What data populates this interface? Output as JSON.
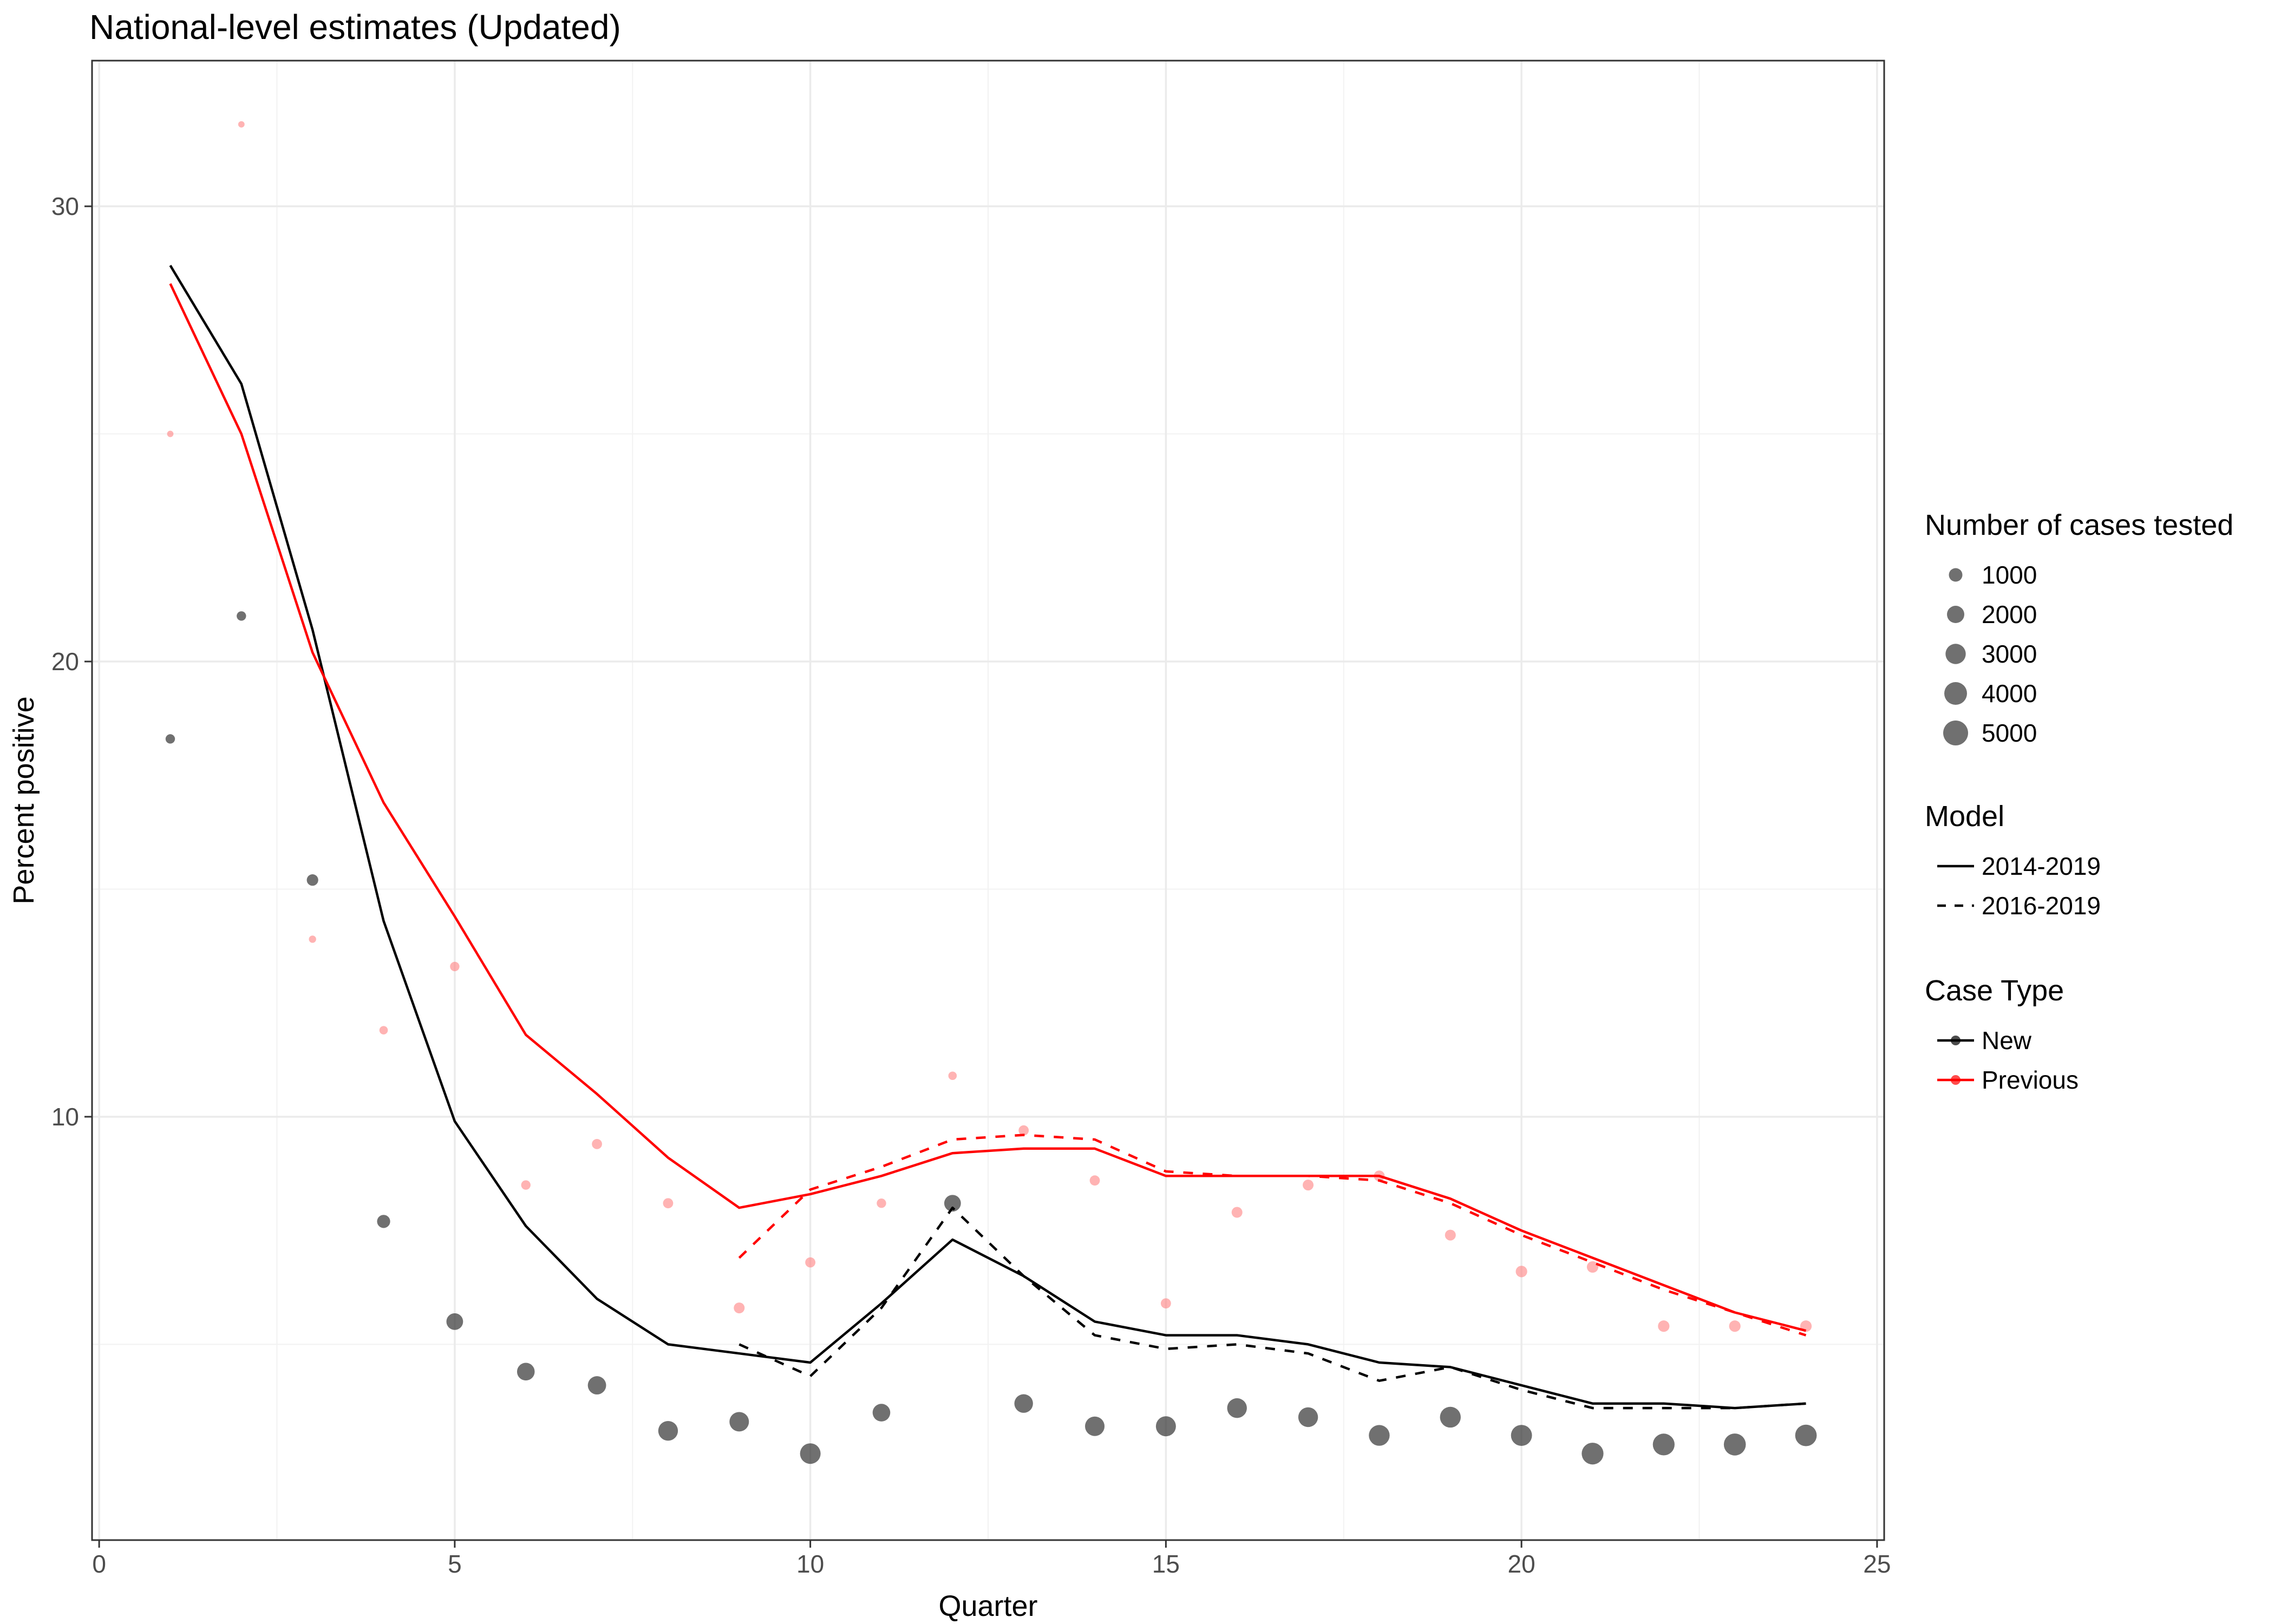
{
  "chart_data": {
    "type": "scatter",
    "title": "National-level estimates (Updated)",
    "xlabel": "Quarter",
    "ylabel": "Percent positive",
    "xlim": [
      -0.1,
      25.1
    ],
    "ylim": [
      0.7,
      33.2
    ],
    "x_ticks": [
      0,
      5,
      10,
      15,
      20,
      25
    ],
    "x_tick_labels": [
      "0",
      "5",
      "10",
      "15",
      "20",
      "25"
    ],
    "y_ticks": [
      10,
      20,
      30
    ],
    "y_tick_labels": [
      "10",
      "20",
      "30"
    ],
    "grid": true,
    "legend_position": "right",
    "colors": {
      "New": "#000000",
      "Previous": "#ff0000"
    },
    "points": {
      "New": {
        "x": [
          1,
          2,
          3,
          4,
          5,
          6,
          7,
          8,
          9,
          10,
          11,
          12,
          13,
          14,
          15,
          16,
          17,
          18,
          19,
          20,
          21,
          22,
          23,
          24
        ],
        "y": [
          18.3,
          21.0,
          15.2,
          7.7,
          5.5,
          4.4,
          4.1,
          3.1,
          3.3,
          2.6,
          3.5,
          8.1,
          3.7,
          3.2,
          3.2,
          3.6,
          3.4,
          3.0,
          3.4,
          3.0,
          2.6,
          2.8,
          2.8,
          3.0
        ],
        "cases": [
          300,
          300,
          600,
          900,
          1800,
          2100,
          2300,
          2800,
          2700,
          3100,
          2100,
          1800,
          2400,
          2700,
          2900,
          2800,
          2800,
          3200,
          3200,
          3300,
          3600,
          3600,
          3700,
          3500
        ]
      },
      "Previous": {
        "x": [
          1,
          2,
          3,
          4,
          5,
          6,
          7,
          8,
          9,
          10,
          11,
          12,
          13,
          14,
          15,
          16,
          17,
          18,
          19,
          20,
          21,
          22,
          23,
          24
        ],
        "y": [
          25.0,
          31.8,
          13.9,
          11.9,
          13.3,
          8.5,
          9.4,
          8.1,
          5.8,
          6.8,
          8.1,
          10.9,
          9.7,
          8.6,
          5.9,
          7.9,
          8.5,
          8.7,
          7.4,
          6.6,
          6.7,
          5.4,
          5.4,
          5.4
        ],
        "cases": [
          50,
          50,
          100,
          200,
          300,
          300,
          400,
          400,
          500,
          400,
          300,
          200,
          400,
          400,
          400,
          500,
          500,
          500,
          500,
          600,
          600,
          600,
          600,
          600
        ]
      }
    },
    "series": [
      {
        "name": "2014-2019 / New",
        "model": "2014-2019",
        "case_type": "New",
        "linetype": "solid",
        "x": [
          1,
          2,
          3,
          4,
          5,
          6,
          7,
          8,
          9,
          10,
          11,
          12,
          13,
          14,
          15,
          16,
          17,
          18,
          19,
          20,
          21,
          22,
          23,
          24
        ],
        "values": [
          28.7,
          26.1,
          20.7,
          14.3,
          9.9,
          7.6,
          6.0,
          5.0,
          4.8,
          4.6,
          5.9,
          7.3,
          6.5,
          5.5,
          5.2,
          5.2,
          5.0,
          4.6,
          4.5,
          4.1,
          3.7,
          3.7,
          3.6,
          3.7
        ]
      },
      {
        "name": "2014-2019 / Previous",
        "model": "2014-2019",
        "case_type": "Previous",
        "linetype": "solid",
        "x": [
          1,
          2,
          3,
          4,
          5,
          6,
          7,
          8,
          9,
          10,
          11,
          12,
          13,
          14,
          15,
          16,
          17,
          18,
          19,
          20,
          21,
          22,
          23,
          24
        ],
        "values": [
          28.3,
          25.0,
          20.2,
          16.9,
          14.4,
          11.8,
          10.5,
          9.1,
          8.0,
          8.3,
          8.7,
          9.2,
          9.3,
          9.3,
          8.7,
          8.7,
          8.7,
          8.7,
          8.2,
          7.5,
          6.9,
          6.3,
          5.7,
          5.3
        ]
      },
      {
        "name": "2016-2019 / New",
        "model": "2016-2019",
        "case_type": "New",
        "linetype": "dashed",
        "x": [
          9,
          10,
          11,
          12,
          13,
          14,
          15,
          16,
          17,
          18,
          19,
          20,
          21,
          22,
          23,
          24
        ],
        "values": [
          5.0,
          4.3,
          5.8,
          8.0,
          6.5,
          5.2,
          4.9,
          5.0,
          4.8,
          4.2,
          4.5,
          4.0,
          3.6,
          3.6,
          3.6,
          3.7
        ]
      },
      {
        "name": "2016-2019 / Previous",
        "model": "2016-2019",
        "case_type": "Previous",
        "linetype": "dashed",
        "x": [
          9,
          10,
          11,
          12,
          13,
          14,
          15,
          16,
          17,
          18,
          19,
          20,
          21,
          22,
          23,
          24
        ],
        "values": [
          6.9,
          8.4,
          8.9,
          9.5,
          9.6,
          9.5,
          8.8,
          8.7,
          8.7,
          8.6,
          8.1,
          7.4,
          6.8,
          6.2,
          5.7,
          5.2
        ]
      }
    ],
    "legends": {
      "size": {
        "title": "Number of cases tested",
        "labels": [
          "1000",
          "2000",
          "3000",
          "4000",
          "5000"
        ],
        "values": [
          1000,
          2000,
          3000,
          4000,
          5000
        ]
      },
      "model": {
        "title": "Model",
        "labels": [
          "2014-2019",
          "2016-2019"
        ],
        "linetypes": [
          "solid",
          "dashed"
        ]
      },
      "case_type": {
        "title": "Case Type",
        "labels": [
          "New",
          "Previous"
        ],
        "colors": [
          "#000000",
          "#ff0000"
        ]
      }
    }
  }
}
